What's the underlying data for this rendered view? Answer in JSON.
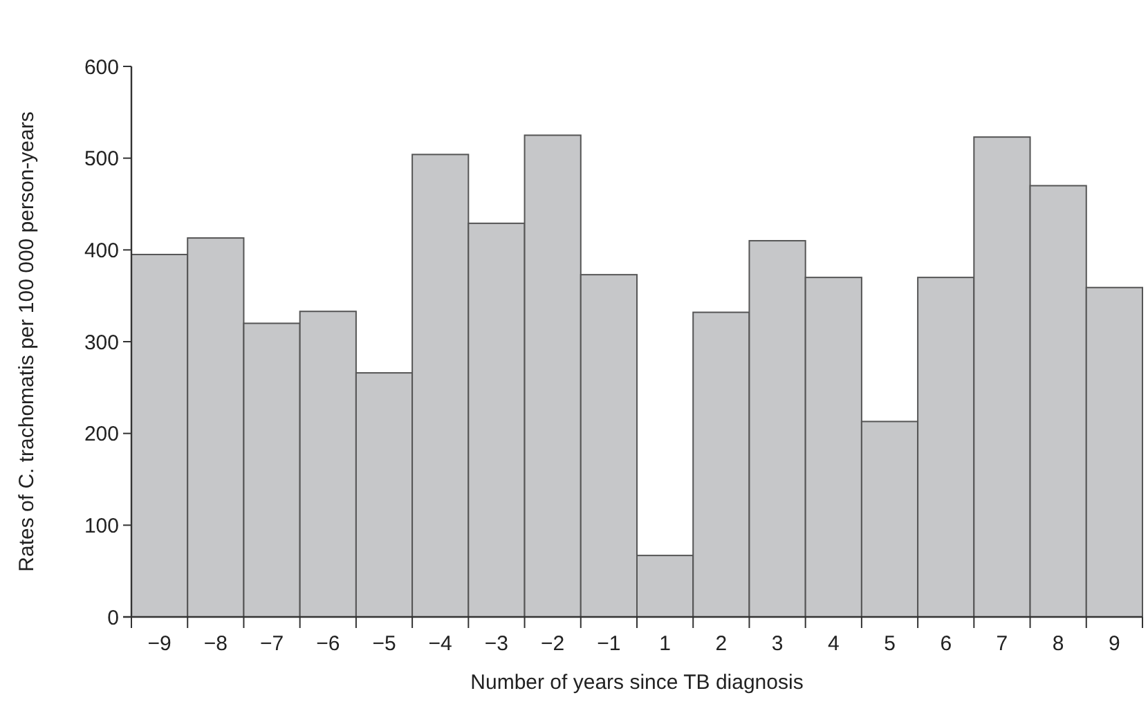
{
  "chart_data": {
    "type": "bar",
    "xlabel": "Number of years since TB diagnosis",
    "ylabel": "Rates of C. trachomatis per 100 000 person-years",
    "categories": [
      "−9",
      "−8",
      "−7",
      "−6",
      "−5",
      "−4",
      "−3",
      "−2",
      "−1",
      "1",
      "2",
      "3",
      "4",
      "5",
      "6",
      "7",
      "8",
      "9"
    ],
    "values": [
      395,
      413,
      320,
      333,
      266,
      504,
      429,
      525,
      373,
      67,
      332,
      410,
      370,
      213,
      370,
      523,
      470,
      359
    ],
    "color": "#c6c7c9",
    "ylim": [
      0,
      600
    ],
    "yticks": [
      0,
      100,
      200,
      300,
      400,
      500,
      600
    ],
    "grid": false
  }
}
